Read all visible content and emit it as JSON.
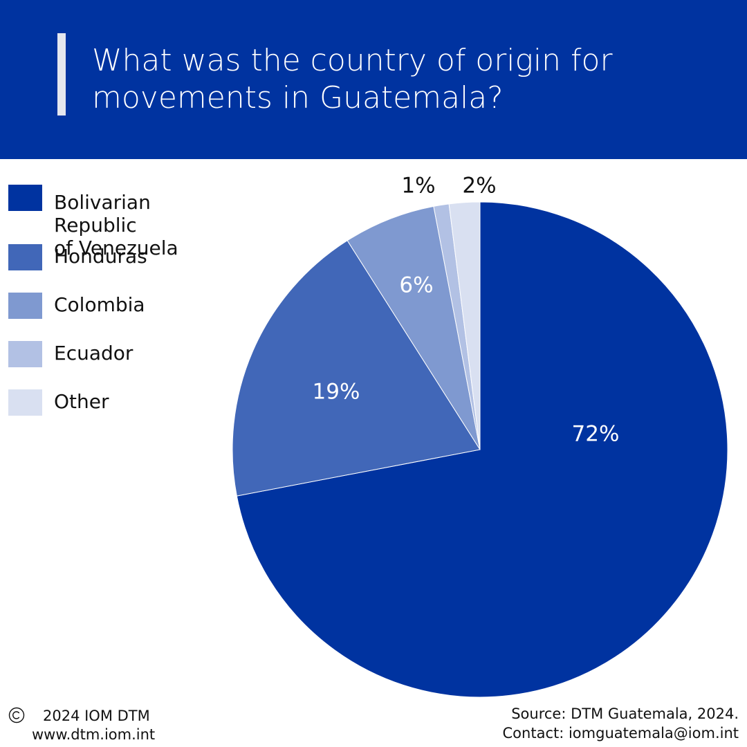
{
  "header": {
    "title": "What was the country of origin for\nmovements in Guatemala?"
  },
  "legend": [
    {
      "label": "Bolivarian Republic\nof Venezuela",
      "color": "#0033a0"
    },
    {
      "label": "Honduras",
      "color": "#4167b8"
    },
    {
      "label": "Colombia",
      "color": "#7f99d0"
    },
    {
      "label": "Ecuador",
      "color": "#b2c1e4"
    },
    {
      "label": "Other",
      "color": "#d9e0f1"
    }
  ],
  "chart_data": {
    "type": "pie",
    "categories": [
      "Bolivarian Republic of Venezuela",
      "Honduras",
      "Colombia",
      "Ecuador",
      "Other"
    ],
    "values": [
      72,
      19,
      6,
      1,
      2
    ],
    "labels": [
      "72%",
      "19%",
      "6%",
      "1%",
      "2%"
    ],
    "colors": [
      "#0033a0",
      "#4167b8",
      "#7f99d0",
      "#b2c1e4",
      "#d9e0f1"
    ],
    "label_colors": [
      "#ffffff",
      "#ffffff",
      "#ffffff",
      "#111111",
      "#111111"
    ],
    "legend_position": "left"
  },
  "footer": {
    "copyright": "2024 IOM DTM",
    "website": "www.dtm.iom.int",
    "source": "Source: DTM Guatemala, 2024.",
    "contact": "Contact: iomguatemala@iom.int"
  },
  "icons": {
    "copyright": "copyright-icon"
  }
}
